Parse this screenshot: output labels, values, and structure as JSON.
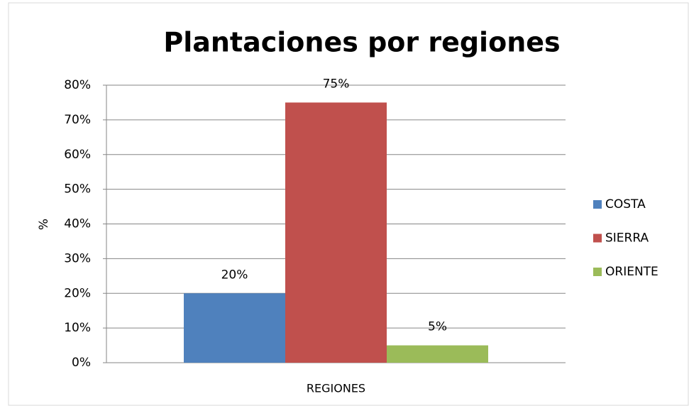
{
  "chart_data": {
    "type": "bar",
    "title": "Plantaciones por regiones",
    "categories": [
      "REGIONES"
    ],
    "series": [
      {
        "name": "COSTA",
        "color": "#4f81bd",
        "values": [
          20
        ],
        "value_labels": [
          "20%"
        ]
      },
      {
        "name": "SIERRA",
        "color": "#c0504d",
        "values": [
          75
        ],
        "value_labels": [
          "75%"
        ]
      },
      {
        "name": "ORIENTE",
        "color": "#9bbb59",
        "values": [
          5
        ],
        "value_labels": [
          "5%"
        ]
      }
    ],
    "ylabel": "%",
    "ylim": [
      0,
      80
    ],
    "yticks": [
      {
        "value": 0,
        "label": "0%"
      },
      {
        "value": 10,
        "label": "10%"
      },
      {
        "value": 20,
        "label": "20%"
      },
      {
        "value": 30,
        "label": "30%"
      },
      {
        "value": 40,
        "label": "40%"
      },
      {
        "value": 50,
        "label": "50%"
      },
      {
        "value": 60,
        "label": "60%"
      },
      {
        "value": 70,
        "label": "70%"
      },
      {
        "value": 80,
        "label": "80%"
      }
    ],
    "grid": true,
    "legend": "right"
  }
}
